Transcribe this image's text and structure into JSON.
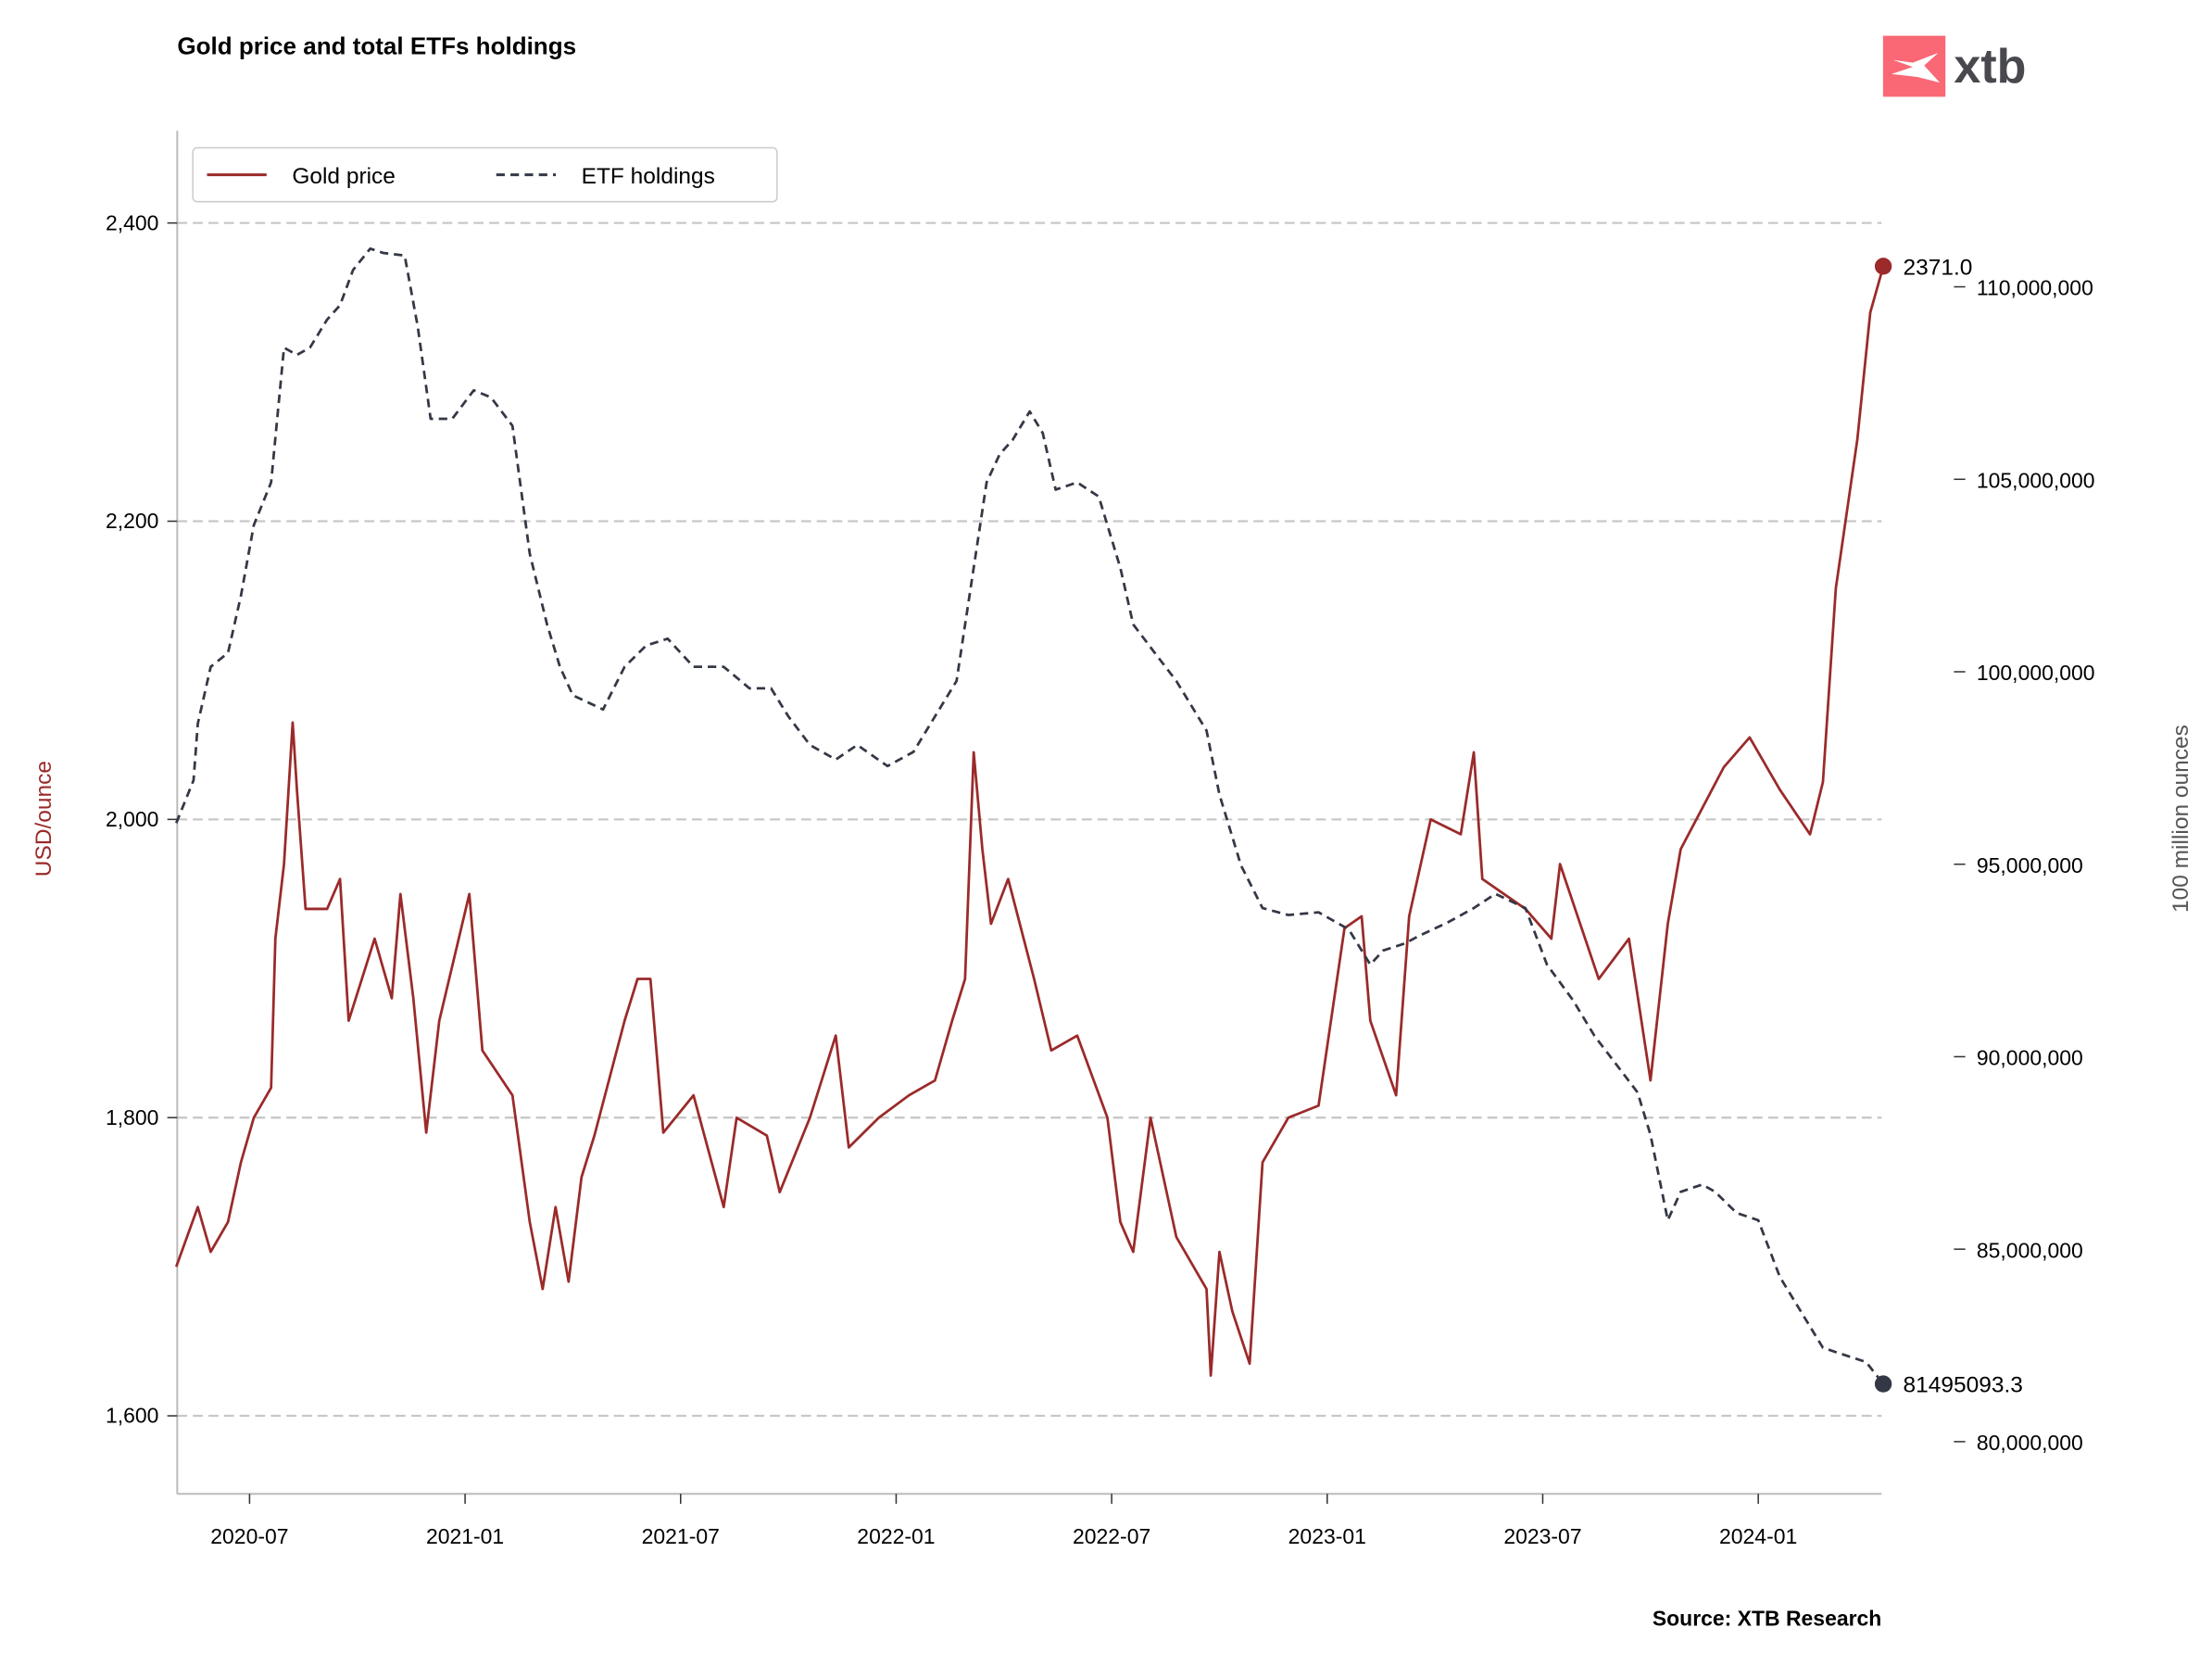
{
  "logo": {
    "text": "xtb",
    "color": "#f96874"
  },
  "chart_data": {
    "type": "line",
    "title": "Gold price and total ETFs holdings",
    "source": "Source: XTB Research",
    "xlabel": "",
    "x_units": "decimal year",
    "xlim": [
      2020.33,
      2024.29
    ],
    "x_ticks": [
      {
        "value": 2020.5,
        "label": "2020-07"
      },
      {
        "value": 2021.0,
        "label": "2021-01"
      },
      {
        "value": 2021.5,
        "label": "2021-07"
      },
      {
        "value": 2022.0,
        "label": "2022-01"
      },
      {
        "value": 2022.5,
        "label": "2022-07"
      },
      {
        "value": 2023.0,
        "label": "2023-01"
      },
      {
        "value": 2023.5,
        "label": "2023-07"
      },
      {
        "value": 2024.0,
        "label": "2024-01"
      }
    ],
    "left_axis": {
      "label": "USD/ounce",
      "ylim": [
        1550,
        2460
      ],
      "ticks": [
        {
          "value": 1600,
          "label": "1,600"
        },
        {
          "value": 1800,
          "label": "1,800"
        },
        {
          "value": 2000,
          "label": "2,000"
        },
        {
          "value": 2200,
          "label": "2,200"
        },
        {
          "value": 2400,
          "label": "2,400"
        }
      ],
      "grid": true
    },
    "right_axis": {
      "label": "100 million ounces",
      "units": "million ounces",
      "ticks": [
        {
          "value": 80,
          "label": "80,000,000"
        },
        {
          "value": 85,
          "label": "85,000,000"
        },
        {
          "value": 90,
          "label": "90,000,000"
        },
        {
          "value": 95,
          "label": "95,000,000"
        },
        {
          "value": 100,
          "label": "100,000,000"
        },
        {
          "value": 105,
          "label": "105,000,000"
        },
        {
          "value": 110,
          "label": "110,000,000"
        }
      ]
    },
    "legend": {
      "placement": "top-left"
    },
    "series": [
      {
        "name": "Gold price",
        "axis": "left",
        "color": "#9b2a2a",
        "style": "solid",
        "last_label": "2371.0",
        "points": [
          [
            2020.33,
            1700
          ],
          [
            2020.38,
            1740
          ],
          [
            2020.41,
            1710
          ],
          [
            2020.45,
            1730
          ],
          [
            2020.48,
            1770
          ],
          [
            2020.51,
            1800
          ],
          [
            2020.55,
            1820
          ],
          [
            2020.56,
            1920
          ],
          [
            2020.58,
            1970
          ],
          [
            2020.6,
            2065
          ],
          [
            2020.61,
            2020
          ],
          [
            2020.63,
            1940
          ],
          [
            2020.68,
            1940
          ],
          [
            2020.71,
            1960
          ],
          [
            2020.73,
            1865
          ],
          [
            2020.79,
            1920
          ],
          [
            2020.83,
            1880
          ],
          [
            2020.85,
            1950
          ],
          [
            2020.88,
            1880
          ],
          [
            2020.91,
            1790
          ],
          [
            2020.94,
            1865
          ],
          [
            2021.01,
            1950
          ],
          [
            2021.04,
            1845
          ],
          [
            2021.11,
            1815
          ],
          [
            2021.15,
            1730
          ],
          [
            2021.18,
            1685
          ],
          [
            2021.21,
            1740
          ],
          [
            2021.24,
            1690
          ],
          [
            2021.27,
            1760
          ],
          [
            2021.3,
            1788
          ],
          [
            2021.37,
            1865
          ],
          [
            2021.4,
            1893
          ],
          [
            2021.43,
            1893
          ],
          [
            2021.46,
            1790
          ],
          [
            2021.53,
            1815
          ],
          [
            2021.6,
            1740
          ],
          [
            2021.63,
            1800
          ],
          [
            2021.7,
            1788
          ],
          [
            2021.73,
            1750
          ],
          [
            2021.8,
            1800
          ],
          [
            2021.86,
            1855
          ],
          [
            2021.89,
            1780
          ],
          [
            2021.96,
            1800
          ],
          [
            2022.03,
            1815
          ],
          [
            2022.09,
            1825
          ],
          [
            2022.13,
            1865
          ],
          [
            2022.16,
            1893
          ],
          [
            2022.18,
            2045
          ],
          [
            2022.2,
            1980
          ],
          [
            2022.22,
            1930
          ],
          [
            2022.26,
            1960
          ],
          [
            2022.32,
            1893
          ],
          [
            2022.36,
            1845
          ],
          [
            2022.42,
            1855
          ],
          [
            2022.49,
            1800
          ],
          [
            2022.52,
            1730
          ],
          [
            2022.55,
            1710
          ],
          [
            2022.59,
            1800
          ],
          [
            2022.65,
            1720
          ],
          [
            2022.72,
            1685
          ],
          [
            2022.73,
            1627
          ],
          [
            2022.75,
            1710
          ],
          [
            2022.78,
            1670
          ],
          [
            2022.82,
            1635
          ],
          [
            2022.85,
            1770
          ],
          [
            2022.91,
            1800
          ],
          [
            2022.98,
            1808
          ],
          [
            2023.04,
            1927
          ],
          [
            2023.08,
            1935
          ],
          [
            2023.1,
            1865
          ],
          [
            2023.16,
            1815
          ],
          [
            2023.19,
            1935
          ],
          [
            2023.24,
            2000
          ],
          [
            2023.31,
            1990
          ],
          [
            2023.34,
            2045
          ],
          [
            2023.36,
            1960
          ],
          [
            2023.46,
            1940
          ],
          [
            2023.52,
            1920
          ],
          [
            2023.54,
            1970
          ],
          [
            2023.63,
            1893
          ],
          [
            2023.7,
            1920
          ],
          [
            2023.75,
            1825
          ],
          [
            2023.79,
            1930
          ],
          [
            2023.82,
            1980
          ],
          [
            2023.92,
            2035
          ],
          [
            2023.98,
            2055
          ],
          [
            2024.05,
            2020
          ],
          [
            2024.12,
            1990
          ],
          [
            2024.15,
            2025
          ],
          [
            2024.18,
            2155
          ],
          [
            2024.23,
            2255
          ],
          [
            2024.26,
            2340
          ],
          [
            2024.29,
            2371
          ]
        ]
      },
      {
        "name": "ETF holdings",
        "axis": "right",
        "color": "#343845",
        "style": "dashed",
        "last_label": "81495093.3",
        "points": [
          [
            2020.33,
            96.07
          ],
          [
            2020.37,
            97.18
          ],
          [
            2020.38,
            98.65
          ],
          [
            2020.41,
            100.13
          ],
          [
            2020.45,
            100.49
          ],
          [
            2020.48,
            101.97
          ],
          [
            2020.51,
            103.81
          ],
          [
            2020.55,
            104.92
          ],
          [
            2020.58,
            108.42
          ],
          [
            2020.61,
            108.23
          ],
          [
            2020.64,
            108.42
          ],
          [
            2020.68,
            109.15
          ],
          [
            2020.71,
            109.52
          ],
          [
            2020.74,
            110.44
          ],
          [
            2020.78,
            110.99
          ],
          [
            2020.81,
            110.88
          ],
          [
            2020.86,
            110.81
          ],
          [
            2020.89,
            108.97
          ],
          [
            2020.92,
            106.57
          ],
          [
            2020.97,
            106.57
          ],
          [
            2021.02,
            107.31
          ],
          [
            2021.06,
            107.13
          ],
          [
            2021.11,
            106.39
          ],
          [
            2021.15,
            103.07
          ],
          [
            2021.19,
            101.23
          ],
          [
            2021.22,
            100.13
          ],
          [
            2021.25,
            99.39
          ],
          [
            2021.32,
            99.02
          ],
          [
            2021.37,
            100.13
          ],
          [
            2021.42,
            100.68
          ],
          [
            2021.47,
            100.86
          ],
          [
            2021.53,
            100.13
          ],
          [
            2021.6,
            100.13
          ],
          [
            2021.66,
            99.57
          ],
          [
            2021.71,
            99.57
          ],
          [
            2021.75,
            98.84
          ],
          [
            2021.8,
            98.1
          ],
          [
            2021.86,
            97.72
          ],
          [
            2021.91,
            98.1
          ],
          [
            2021.98,
            97.55
          ],
          [
            2022.04,
            97.92
          ],
          [
            2022.09,
            98.84
          ],
          [
            2022.14,
            99.76
          ],
          [
            2022.17,
            101.97
          ],
          [
            2022.21,
            104.92
          ],
          [
            2022.24,
            105.65
          ],
          [
            2022.27,
            106.02
          ],
          [
            2022.31,
            106.76
          ],
          [
            2022.34,
            106.2
          ],
          [
            2022.37,
            104.73
          ],
          [
            2022.42,
            104.92
          ],
          [
            2022.47,
            104.55
          ],
          [
            2022.52,
            102.7
          ],
          [
            2022.55,
            101.23
          ],
          [
            2022.6,
            100.49
          ],
          [
            2022.65,
            99.76
          ],
          [
            2022.72,
            98.47
          ],
          [
            2022.75,
            96.81
          ],
          [
            2022.8,
            94.97
          ],
          [
            2022.85,
            93.86
          ],
          [
            2022.91,
            93.68
          ],
          [
            2022.98,
            93.75
          ],
          [
            2023.05,
            93.31
          ],
          [
            2023.1,
            92.39
          ],
          [
            2023.13,
            92.76
          ],
          [
            2023.18,
            92.94
          ],
          [
            2023.21,
            93.12
          ],
          [
            2023.28,
            93.49
          ],
          [
            2023.34,
            93.86
          ],
          [
            2023.39,
            94.23
          ],
          [
            2023.46,
            93.86
          ],
          [
            2023.51,
            92.39
          ],
          [
            2023.57,
            91.47
          ],
          [
            2023.62,
            90.54
          ],
          [
            2023.67,
            89.81
          ],
          [
            2023.72,
            89.07
          ],
          [
            2023.75,
            87.97
          ],
          [
            2023.79,
            85.75
          ],
          [
            2023.82,
            86.49
          ],
          [
            2023.87,
            86.68
          ],
          [
            2023.9,
            86.49
          ],
          [
            2023.95,
            85.94
          ],
          [
            2024.0,
            85.75
          ],
          [
            2024.05,
            84.28
          ],
          [
            2024.1,
            83.36
          ],
          [
            2024.15,
            82.44
          ],
          [
            2024.2,
            82.25
          ],
          [
            2024.25,
            82.07
          ],
          [
            2024.29,
            81.5
          ]
        ]
      }
    ]
  }
}
